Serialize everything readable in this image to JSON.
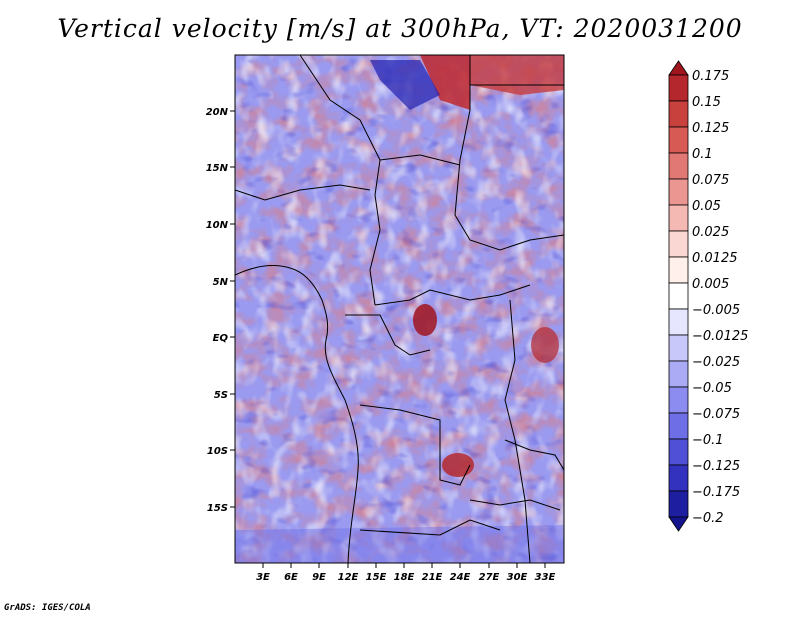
{
  "title": "Vertical velocity [m/s] at 300hPa, VT: 2020031200",
  "credit": "GrADS: IGES/COLA",
  "map": {
    "lat_labels": [
      "20N",
      "15N",
      "10N",
      "5N",
      "EQ",
      "5S",
      "10S",
      "15S"
    ],
    "lon_labels": [
      "3E",
      "6E",
      "9E",
      "12E",
      "15E",
      "18E",
      "21E",
      "24E",
      "27E",
      "30E",
      "33E"
    ],
    "lat_range": [
      -20,
      24
    ],
    "lon_range": [
      0,
      35
    ],
    "variable": "vertical velocity",
    "units": "m/s",
    "level": "300hPa"
  },
  "colorbar": {
    "labels": [
      "0.175",
      "0.15",
      "0.125",
      "0.1",
      "0.075",
      "0.05",
      "0.025",
      "0.0125",
      "0.005",
      "−0.005",
      "−0.0125",
      "−0.025",
      "−0.05",
      "−0.075",
      "−0.1",
      "−0.125",
      "−0.175",
      "−0.2"
    ],
    "colors": [
      "#a0141e",
      "#b4282d",
      "#c8413c",
      "#d75a55",
      "#e17873",
      "#eb9691",
      "#f5b9b4",
      "#fad7d2",
      "#fff0eb",
      "#ffffff",
      "#e6e6ff",
      "#c8c8fa",
      "#aaaaf5",
      "#8c8cf0",
      "#6e6ee6",
      "#5050d7",
      "#3232be",
      "#1e1ea0",
      "#14148c"
    ]
  }
}
